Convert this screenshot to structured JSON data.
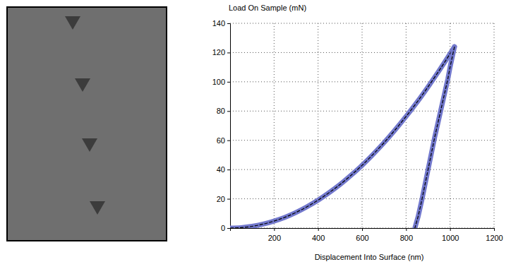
{
  "chart_data": {
    "type": "line",
    "title": "Load On Sample (mN)",
    "x_label": "Displacement Into Surface (nm)",
    "xlim": [
      0,
      1200
    ],
    "xticks": [
      200,
      400,
      600,
      800,
      1000,
      1200
    ],
    "ylim": [
      0,
      140
    ],
    "yticks": [
      0,
      20,
      40,
      60,
      80,
      100,
      120,
      140
    ],
    "grid": true,
    "series": [
      {
        "color": "#7278cc",
        "line_style": "solid",
        "x": [
          0,
          50,
          100,
          150,
          200,
          250,
          300,
          350,
          400,
          450,
          500,
          550,
          600,
          650,
          700,
          750,
          800,
          850,
          900,
          950,
          1000,
          1020
        ],
        "values": [
          0,
          0.3,
          1.2,
          2.7,
          4.8,
          7.4,
          10.7,
          14.6,
          19.1,
          24.2,
          29.8,
          36.1,
          42.9,
          50.4,
          58.4,
          67.1,
          76.3,
          86.1,
          96.6,
          107.6,
          119.2,
          124
        ]
      },
      {
        "color": "#7278cc",
        "line_style": "solid",
        "x": [
          1020,
          1010,
          1000,
          990,
          975,
          960,
          945,
          930,
          915,
          900,
          885,
          870,
          855,
          840
        ],
        "values": [
          124,
          117,
          110,
          102,
          92,
          82,
          72,
          62,
          51,
          40,
          29,
          18,
          8,
          0
        ]
      }
    ]
  }
}
